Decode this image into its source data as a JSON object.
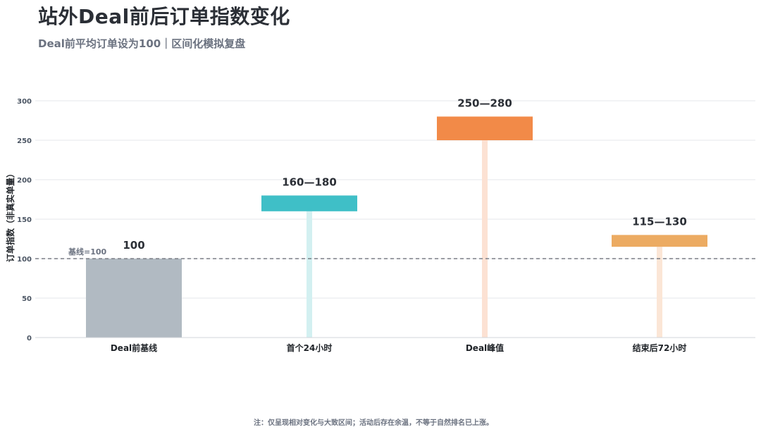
{
  "title": "站外Deal前后订单指数变化",
  "subtitle": "Deal前平均订单设为100｜区间化模拟复盘",
  "footnote": "注：仅呈现相对变化与大致区间；活动后存在余温，不等于自然排名已上涨。",
  "colors": {
    "baseline_bar": "#b1bac2",
    "first24": "#3fbfc7",
    "first24_stem": "#d3f0f1",
    "peak": "#f28a48",
    "peak_stem": "#fce1d3",
    "post72": "#ecab62",
    "post72_stem": "#fbe6d6",
    "reference_line": "#7b7f86",
    "grid": "#e5e7eb",
    "axis": "#d1d5db"
  },
  "chart_data": {
    "type": "bar",
    "ylabel": "订单指数（非真实单量）",
    "ylim": [
      0,
      300
    ],
    "yticks": [
      0,
      50,
      100,
      150,
      200,
      250,
      300
    ],
    "grid": true,
    "categories": [
      "Deal前基线",
      "首个24小时",
      "Deal峰值",
      "结束后72小时"
    ],
    "ranges": [
      [
        100,
        100
      ],
      [
        160,
        180
      ],
      [
        250,
        280
      ],
      [
        115,
        130
      ]
    ],
    "labels": [
      "100",
      "160—180",
      "250—280",
      "115—130"
    ],
    "reference_line": {
      "value": 100,
      "label": "基线=100"
    }
  }
}
